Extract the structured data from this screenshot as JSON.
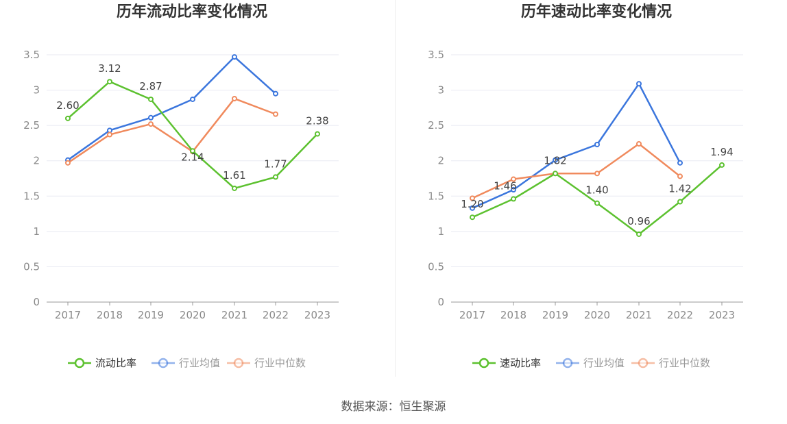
{
  "source_text": "数据来源：恒生聚源",
  "legend_labels": {
    "industry_avg": "行业均值",
    "industry_median": "行业中位数"
  },
  "colors": {
    "green": "#5cc12f",
    "blue": "#3b76dd",
    "orange": "#f08a5d",
    "grid": "#e8eaf2",
    "axis": "#999999",
    "tick_text": "#8a8a8a",
    "title": "#333333"
  },
  "chart_data": [
    {
      "type": "line",
      "title": "历年流动比率变化情况",
      "categories": [
        "2017",
        "2018",
        "2019",
        "2020",
        "2021",
        "2022",
        "2023"
      ],
      "yticks": [
        "0",
        "0.5",
        "1",
        "1.5",
        "2",
        "2.5",
        "3",
        "3.5"
      ],
      "ylim": [
        0,
        3.5
      ],
      "grid": true,
      "legend_position": "bottom",
      "series": [
        {
          "key": "main",
          "name": "流动比率",
          "color": "#5cc12f",
          "values": [
            2.6,
            3.12,
            2.87,
            2.14,
            1.61,
            1.77,
            2.38
          ],
          "labels": [
            "2.60",
            "3.12",
            "2.87",
            "2.14",
            "1.61",
            "1.77",
            "2.38"
          ]
        },
        {
          "key": "avg",
          "name": "行业均值",
          "color": "#3b76dd",
          "values": [
            2.01,
            2.43,
            2.61,
            2.87,
            3.47,
            2.95,
            null
          ]
        },
        {
          "key": "median",
          "name": "行业中位数",
          "color": "#f08a5d",
          "values": [
            1.97,
            2.37,
            2.52,
            2.13,
            2.88,
            2.66,
            null
          ]
        }
      ]
    },
    {
      "type": "line",
      "title": "历年速动比率变化情况",
      "categories": [
        "2017",
        "2018",
        "2019",
        "2020",
        "2021",
        "2022",
        "2023"
      ],
      "yticks": [
        "0",
        "0.5",
        "1",
        "1.5",
        "2",
        "2.5",
        "3",
        "3.5"
      ],
      "ylim": [
        0,
        3.5
      ],
      "grid": true,
      "legend_position": "bottom",
      "series": [
        {
          "key": "main",
          "name": "速动比率",
          "color": "#5cc12f",
          "values": [
            1.2,
            1.46,
            1.82,
            1.4,
            0.96,
            1.42,
            1.94
          ],
          "labels": [
            "1.20",
            "1.46",
            "1.82",
            "1.40",
            "0.96",
            "1.42",
            "1.94"
          ]
        },
        {
          "key": "avg",
          "name": "行业均值",
          "color": "#3b76dd",
          "values": [
            1.33,
            1.59,
            2.01,
            2.23,
            3.09,
            1.97,
            null
          ]
        },
        {
          "key": "median",
          "name": "行业中位数",
          "color": "#f08a5d",
          "values": [
            1.47,
            1.74,
            1.82,
            1.82,
            2.24,
            1.78,
            null
          ]
        }
      ]
    }
  ]
}
